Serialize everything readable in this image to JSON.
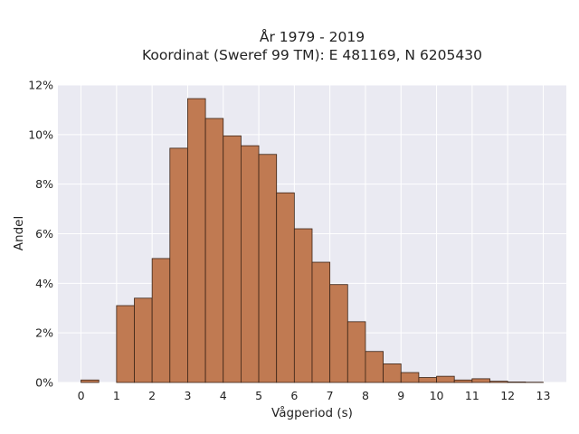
{
  "chart_data": {
    "type": "bar",
    "title_lines": [
      "År 1979 - 2019",
      "Koordinat (Sweref 99 TM): E 481169, N 6205430"
    ],
    "xlabel": "Vågperiod (s)",
    "ylabel": "Andel",
    "bin_width": 0.5,
    "bin_starts": [
      0,
      0.5,
      1,
      1.5,
      2,
      2.5,
      3,
      3.5,
      4,
      4.5,
      5,
      5.5,
      6,
      6.5,
      7,
      7.5,
      8,
      8.5,
      9,
      9.5,
      10,
      10.5,
      11,
      11.5,
      12,
      12.5
    ],
    "values": [
      0.1,
      0.0,
      3.1,
      3.4,
      5.0,
      9.45,
      11.45,
      10.65,
      9.95,
      9.55,
      9.2,
      7.65,
      6.2,
      4.85,
      3.95,
      2.45,
      1.25,
      0.75,
      0.4,
      0.2,
      0.25,
      0.1,
      0.15,
      0.05,
      0.02,
      0.01
    ],
    "x_ticks": [
      "0",
      "1",
      "2",
      "3",
      "4",
      "5",
      "6",
      "7",
      "8",
      "9",
      "10",
      "11",
      "12",
      "13"
    ],
    "y_ticks": [
      "0%",
      "2%",
      "4%",
      "6%",
      "8%",
      "10%",
      "12%"
    ],
    "xlim": [
      -0.65,
      13.65
    ],
    "ylim": [
      0,
      12
    ],
    "grid": true,
    "bar_color": "#c07a52",
    "edge_color": "#3b2417",
    "plot_background": "#eaeaf2"
  }
}
